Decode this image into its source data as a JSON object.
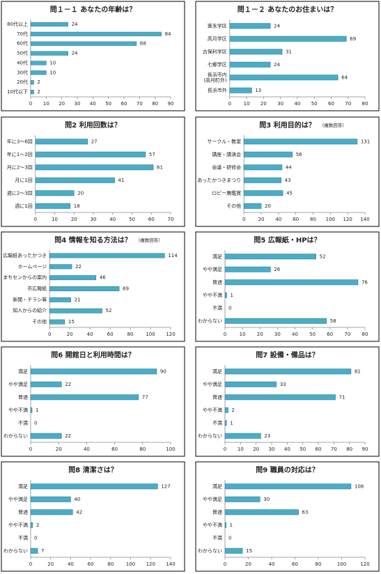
{
  "chart_data": [
    {
      "type": "bar",
      "orientation": "horizontal",
      "title": "問１－１ あなたの年齢は？",
      "categories": [
        "80代以上",
        "70代",
        "60代",
        "50代",
        "40代",
        "30代",
        "20代",
        "10代以下"
      ],
      "values": [
        24,
        84,
        68,
        24,
        10,
        10,
        2,
        2
      ],
      "color": "#4bacc6",
      "xlim": [
        0,
        90
      ],
      "xticks": [
        0,
        10,
        20,
        30,
        40,
        50,
        60,
        70,
        80,
        90
      ]
    },
    {
      "type": "bar",
      "orientation": "horizontal",
      "title": "問１－２ あなたのお住まいは？",
      "categories": [
        "富永学区",
        "高月学区",
        "古保利学区",
        "七郷学区",
        "長浜市内\n(高月町外)",
        "長浜市外"
      ],
      "values": [
        24,
        69,
        31,
        24,
        64,
        13
      ],
      "color": "#4bacc6",
      "xlim": [
        0,
        80
      ],
      "xticks": [
        0,
        10,
        20,
        30,
        40,
        50,
        60,
        70,
        80
      ]
    },
    {
      "type": "bar",
      "orientation": "horizontal",
      "title": "問2 利用回数は？",
      "categories": [
        "年に3～6回",
        "年に1～2回",
        "月に2～3回",
        "月に1回",
        "週に2～3回",
        "週に1回"
      ],
      "values": [
        27,
        57,
        61,
        41,
        20,
        18
      ],
      "color": "#4bacc6",
      "xlim": [
        0,
        70
      ],
      "xticks": [
        0,
        10,
        20,
        30,
        40,
        50,
        60,
        70
      ]
    },
    {
      "type": "bar",
      "orientation": "horizontal",
      "title": "問3 利用目的は？",
      "subtitle": "（複数回答）",
      "categories": [
        "サークル・教室",
        "講座・講演会",
        "会議・研修会",
        "あったかつきまつり",
        "ロビー展鑑賞",
        "その他"
      ],
      "values": [
        131,
        56,
        44,
        43,
        45,
        20
      ],
      "color": "#4bacc6",
      "xlim": [
        0,
        140
      ],
      "xticks": [
        0,
        20,
        40,
        60,
        80,
        100,
        120,
        140
      ]
    },
    {
      "type": "bar",
      "orientation": "horizontal",
      "title": "問4 情報を知る方法は？",
      "subtitle": "（複数回答）",
      "categories": [
        "広報紙あったかつき",
        "ホームページ",
        "まちセンからの案内",
        "市広報紙",
        "新聞・チラシ等",
        "知人からの紹介",
        "その他"
      ],
      "values": [
        114,
        22,
        46,
        69,
        21,
        52,
        15
      ],
      "color": "#4bacc6",
      "xlim": [
        0,
        120
      ],
      "xticks": [
        0,
        20,
        40,
        60,
        80,
        100,
        120
      ]
    },
    {
      "type": "bar",
      "orientation": "horizontal",
      "title": "問5 広報紙・HPは？",
      "categories": [
        "満足",
        "やや満足",
        "普通",
        "やや不満",
        "不満",
        "わからない"
      ],
      "values": [
        52,
        26,
        76,
        1,
        0,
        58
      ],
      "color": "#4bacc6",
      "xlim": [
        0,
        80
      ],
      "xticks": [
        0,
        10,
        20,
        30,
        40,
        50,
        60,
        70,
        80
      ]
    },
    {
      "type": "bar",
      "orientation": "horizontal",
      "title": "問6 開館日と利用時間は？",
      "categories": [
        "満足",
        "やや満足",
        "普通",
        "やや不満",
        "不満",
        "わからない"
      ],
      "values": [
        90,
        22,
        77,
        1,
        0,
        22
      ],
      "color": "#4bacc6",
      "xlim": [
        0,
        100
      ],
      "xticks": [
        0,
        20,
        40,
        60,
        80,
        100
      ]
    },
    {
      "type": "bar",
      "orientation": "horizontal",
      "title": "問7 設備・備品は？",
      "categories": [
        "満足",
        "やや満足",
        "普通",
        "やや不満",
        "不満",
        "わからない"
      ],
      "values": [
        81,
        33,
        71,
        2,
        1,
        23
      ],
      "color": "#4bacc6",
      "xlim": [
        0,
        90
      ],
      "xticks": [
        0,
        10,
        20,
        30,
        40,
        50,
        60,
        70,
        80,
        90
      ]
    },
    {
      "type": "bar",
      "orientation": "horizontal",
      "title": "問8 清潔さは？",
      "categories": [
        "満足",
        "やや満足",
        "普通",
        "やや不満",
        "不満",
        "わからない"
      ],
      "values": [
        127,
        40,
        42,
        2,
        0,
        7
      ],
      "color": "#4bacc6",
      "xlim": [
        0,
        140
      ],
      "xticks": [
        0,
        20,
        40,
        60,
        80,
        100,
        120,
        140
      ]
    },
    {
      "type": "bar",
      "orientation": "horizontal",
      "title": "問9 職員の対応は？",
      "categories": [
        "満足",
        "やや満足",
        "普通",
        "やや不満",
        "不満",
        "わからない"
      ],
      "values": [
        108,
        30,
        63,
        1,
        0,
        15
      ],
      "color": "#4bacc6",
      "xlim": [
        0,
        120
      ],
      "xticks": [
        0,
        20,
        40,
        60,
        80,
        100,
        120
      ]
    }
  ]
}
